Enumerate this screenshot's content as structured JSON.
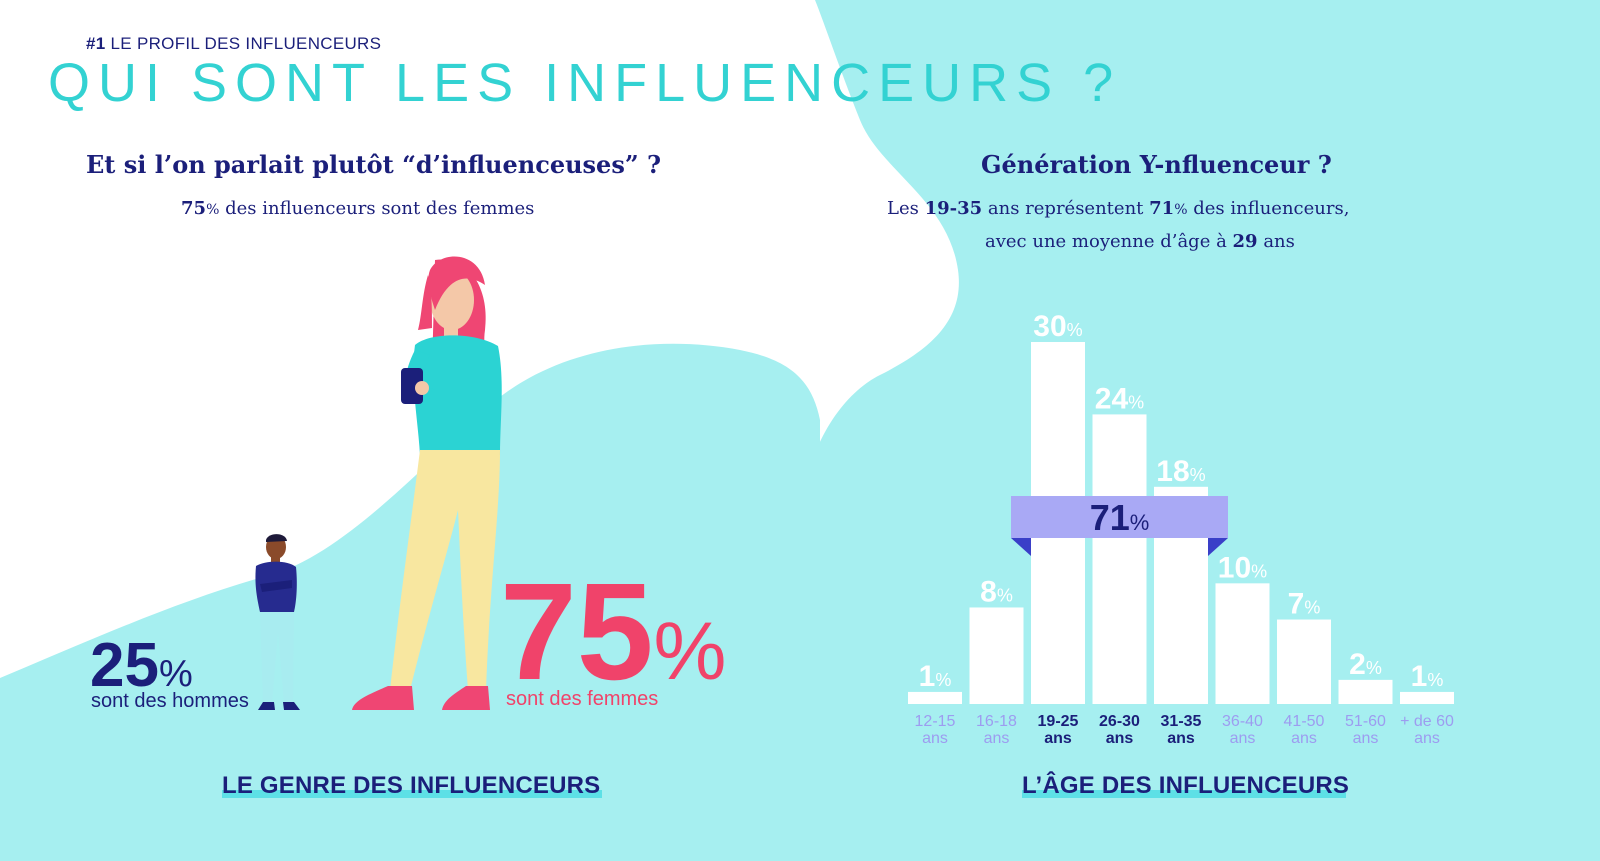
{
  "header": {
    "kicker_num": "#1",
    "kicker_text": "LE PROFIL DES INFLUENCEURS",
    "title": "QUI SONT LES INFLUENCEURS ?"
  },
  "left": {
    "heading": "Et si l’on parlait plutôt “d’influenceuses” ?",
    "sub_pct": "75",
    "sub_pct_unit": "%",
    "sub_text": " des influenceurs sont des femmes",
    "men_pct": "25",
    "men_unit": "%",
    "men_label": "sont des hommes",
    "women_pct": "75",
    "women_unit": "%",
    "women_label": "sont des femmes",
    "caption": "LE GENRE DES INFLUENCEURS"
  },
  "right": {
    "heading": "Génération Y-nfluenceur ?",
    "line1_a": "Les ",
    "line1_b": "19-35",
    "line1_c": " ans représentent ",
    "line1_d": "71",
    "line1_e": "%",
    "line1_f": " des influenceurs,",
    "line2_a": "avec une moyenne d’âge à ",
    "line2_b": "29",
    "line2_c": " ans",
    "caption": "L’ÂGE DES INFLUENCEURS"
  },
  "colors": {
    "navy": "#1b1f7a",
    "teal": "#33d2d2",
    "aqua_bg": "#a6eff0",
    "pink": "#f0436a",
    "lavender": "#a9a9f5",
    "muted_label": "#9d9cf0"
  },
  "chart_data": {
    "type": "bar",
    "categories": [
      "12-15",
      "16-18",
      "19-25",
      "26-30",
      "31-35",
      "36-40",
      "41-50",
      "51-60",
      "+ de 60"
    ],
    "category_unit": "ans",
    "values": [
      1,
      8,
      30,
      24,
      18,
      10,
      7,
      2,
      1
    ],
    "value_unit": "%",
    "highlight_categories": [
      "19-25",
      "26-30",
      "31-35"
    ],
    "highlight_total": "71",
    "highlight_unit": "%",
    "title": "L’ÂGE DES INFLUENCEURS",
    "xlabel": "",
    "ylabel": "",
    "ylim": [
      0,
      30
    ]
  }
}
